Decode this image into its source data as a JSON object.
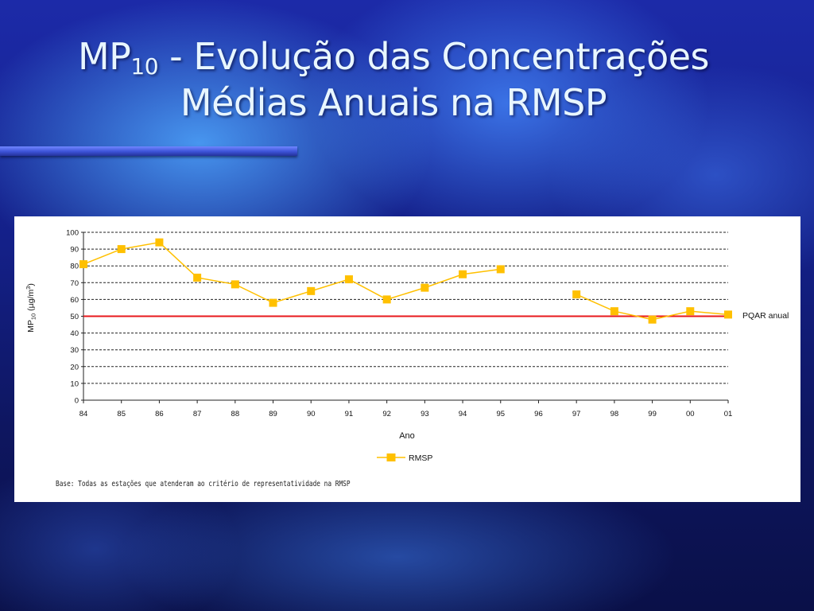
{
  "slide": {
    "title_prefix": "MP",
    "title_sub": "10",
    "title_rest": " - Evolução das Concentrações",
    "title_line2": "Médias Anuais na RMSP",
    "colors": {
      "title": "#e8f6ff",
      "rule": "#4a5fe0"
    }
  },
  "chart_data": {
    "type": "line",
    "title": "",
    "xlabel": "Ano",
    "ylabel_prefix": "MP",
    "ylabel_sub": "10",
    "ylabel_suffix": " (µg/m",
    "ylabel_sup": "3",
    "ylabel_close": ")",
    "ylim": [
      0,
      100
    ],
    "yticks": [
      0,
      10,
      20,
      30,
      40,
      50,
      60,
      70,
      80,
      90,
      100
    ],
    "categories": [
      "84",
      "85",
      "86",
      "87",
      "88",
      "89",
      "90",
      "91",
      "92",
      "93",
      "94",
      "95",
      "96",
      "97",
      "98",
      "99",
      "00",
      "01"
    ],
    "series": [
      {
        "name": "RMSP",
        "color": "#ffc000",
        "values": [
          81,
          90,
          94,
          73,
          69,
          58,
          65,
          72,
          60,
          67,
          75,
          78,
          null,
          63,
          53,
          48,
          53,
          51
        ]
      }
    ],
    "reference_line": {
      "label": "PQAR anual",
      "value": 50,
      "color": "#e8191c"
    },
    "grid": "horizontal dashed",
    "legend": "bottom-center",
    "footnote": "Base: Todas as estações que atenderam ao critério de representatividade na RMSP"
  }
}
